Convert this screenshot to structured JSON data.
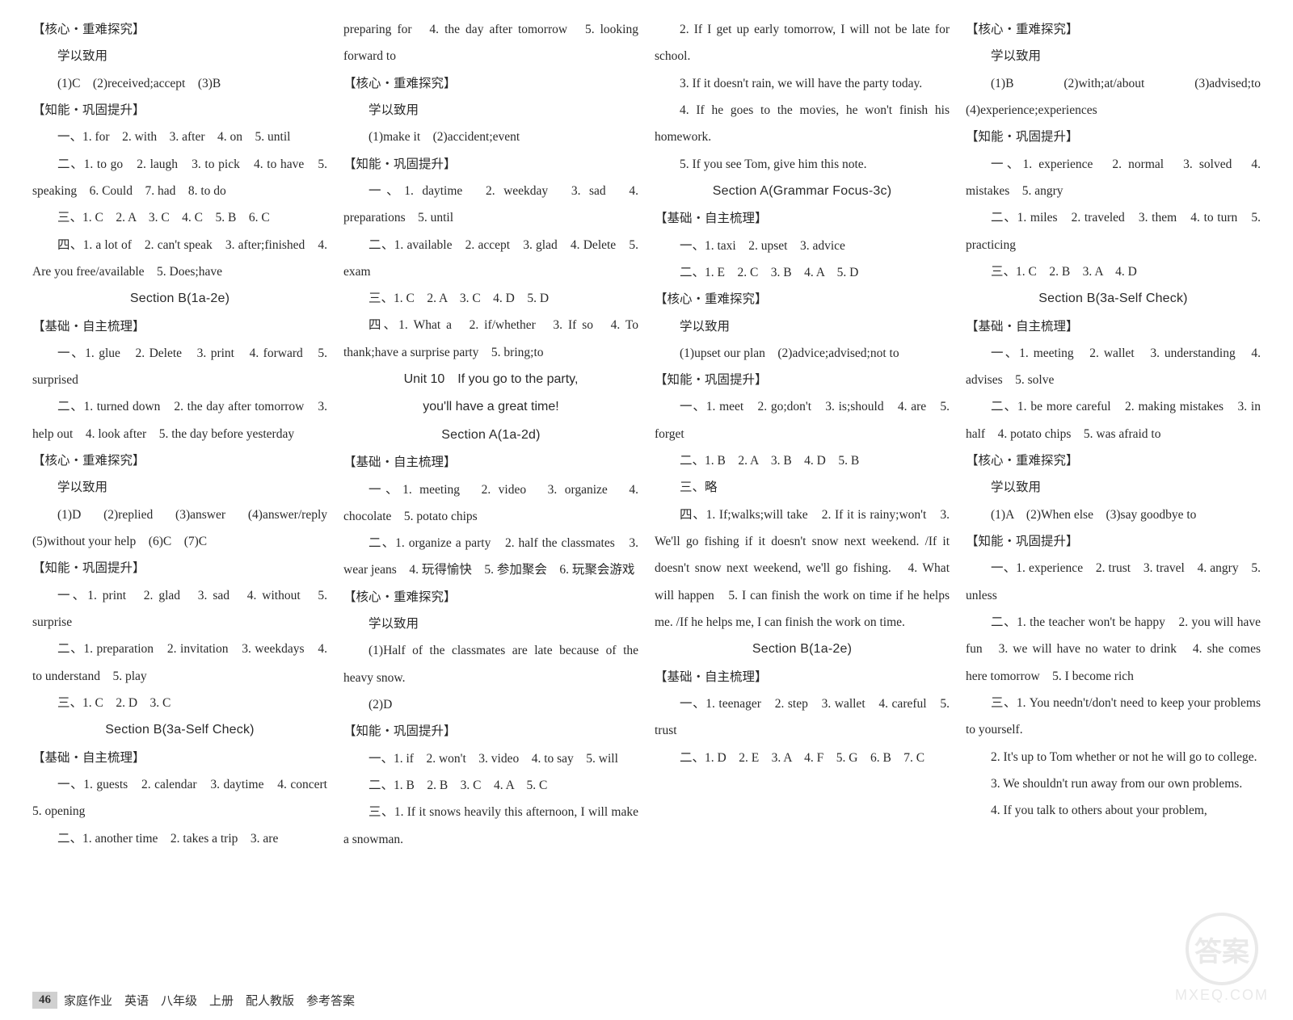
{
  "col1": {
    "l1": "【核心・重难探究】",
    "l2": "学以致用",
    "l3": "(1)C　(2)received;accept　(3)B",
    "l4": "【知能・巩固提升】",
    "l5": "一、1. for　2. with　3. after　4. on　5. until",
    "l6": "二、1. to go　2. laugh　3. to pick　4. to have　5. speaking　6. Could　7. had　8. to do",
    "l7": "三、1. C　2. A　3. C　4. C　5. B　6. C",
    "l8": "四、1. a lot of　2. can't speak　3. after;finished　4. Are you free/available　5. Does;have",
    "sec1": "Section B(1a-2e)",
    "l9": "【基础・自主梳理】",
    "l10": "一、1. glue　2. Delete　3. print　4. forward　5. surprised",
    "l11": "二、1. turned down　2. the day after tomorrow　3. help out　4. look after　5. the day before yesterday",
    "l12": "【核心・重难探究】",
    "l13": "学以致用",
    "l14": "(1)D　(2)replied　(3)answer　(4)answer/reply　(5)without your help　(6)C　(7)C",
    "l15": "【知能・巩固提升】",
    "l16": "一、1. print　2. glad　3. sad　4. without　5. surprise",
    "l17": "二、1. preparation　2. invitation　3. weekdays　4. to understand　5. play",
    "l18": "三、1. C　2. D　3. C",
    "sec2": "Section B(3a-Self Check)",
    "l19": "【基础・自主梳理】",
    "l20": "一、1. guests　2. calendar　3. daytime　4. concert　5. opening",
    "l21": "二、1. another time　2. takes a trip　3. are"
  },
  "col2": {
    "l1": "preparing for　4. the day after tomorrow　5. looking forward to",
    "l2": "【核心・重难探究】",
    "l3": "学以致用",
    "l4": "(1)make it　(2)accident;event",
    "l5": "【知能・巩固提升】",
    "l6": "一、1. daytime　2. weekday　3. sad　4. preparations　5. until",
    "l7": "二、1. available　2. accept　3. glad　4. Delete　5. exam",
    "l8": "三、1. C　2. A　3. C　4. D　5. D",
    "l9": "四、1. What a　2. if/whether　3. If so　4. To thank;have a surprise party　5. bring;to",
    "unit": "Unit 10　If you go to the party,",
    "unit2": "you'll have a great time!",
    "sec1": "Section A(1a-2d)",
    "l10": "【基础・自主梳理】",
    "l11": "一、1. meeting　2. video　3. organize　4. chocolate　5. potato chips",
    "l12": "二、1. organize a party　2. half the classmates　3. wear jeans　4. 玩得愉快　5. 参加聚会　6. 玩聚会游戏",
    "l13": "【核心・重难探究】",
    "l14": "学以致用",
    "l15": "(1)Half of the classmates are late because of the heavy snow.",
    "l16": "(2)D",
    "l17": "【知能・巩固提升】",
    "l18": "一、1. if　2. won't　3. video　4. to say　5. will",
    "l19": "二、1. B　2. B　3. C　4. A　5. C",
    "l20": "三、1. If it snows heavily this afternoon, I will make a snowman."
  },
  "col3": {
    "l1": "2. If I get up early tomorrow, I will not be late for school.",
    "l2": "3. If it doesn't rain, we will have the party today.",
    "l3": "4. If he goes to the movies, he won't finish his homework.",
    "l4": "5. If you see Tom, give him this note.",
    "sec1": "Section A(Grammar Focus-3c)",
    "l5": "【基础・自主梳理】",
    "l6": "一、1. taxi　2. upset　3. advice",
    "l7": "二、1. E　2. C　3. B　4. A　5. D",
    "l8": "【核心・重难探究】",
    "l9": "学以致用",
    "l10": "(1)upset our plan　(2)advice;advised;not to",
    "l11": "【知能・巩固提升】",
    "l12": "一、1. meet　2. go;don't　3. is;should　4. are　5. forget",
    "l13": "二、1. B　2. A　3. B　4. D　5. B",
    "l14": "三、略",
    "l15": "四、1. If;walks;will take　2. If it is rainy;won't　3. We'll go fishing if it doesn't snow next weekend. /If it doesn't snow next weekend, we'll go fishing.　4. What will happen　5. I can finish the work on time if he helps me. /If he helps me, I can finish the work on time.",
    "sec2": "Section B(1a-2e)",
    "l16": "【基础・自主梳理】",
    "l17": "一、1. teenager　2. step　3. wallet　4. careful　5. trust",
    "l18": "二、1. D　2. E　3. A　4. F　5. G　6. B　7. C"
  },
  "col4": {
    "l1": "【核心・重难探究】",
    "l2": "学以致用",
    "l3": "(1)B　(2)with;at/about　(3)advised;to　(4)experience;experiences",
    "l4": "【知能・巩固提升】",
    "l5": "一、1. experience　2. normal　3. solved　4. mistakes　5. angry",
    "l6": "二、1. miles　2. traveled　3. them　4. to turn　5. practicing",
    "l7": "三、1. C　2. B　3. A　4. D",
    "sec1": "Section B(3a-Self Check)",
    "l8": "【基础・自主梳理】",
    "l9": "一、1. meeting　2. wallet　3. understanding　4. advises　5. solve",
    "l10": "二、1. be more careful　2. making mistakes　3. in half　4. potato chips　5. was afraid to",
    "l11": "【核心・重难探究】",
    "l12": "学以致用",
    "l13": "(1)A　(2)When else　(3)say goodbye to",
    "l14": "【知能・巩固提升】",
    "l15": "一、1. experience　2. trust　3. travel　4. angry　5. unless",
    "l16": "二、1. the teacher won't be happy　2. you will have fun　3. we will have no water to drink　4. she comes here tomorrow　5. I become rich",
    "l17": "三、1. You needn't/don't need to keep your problems to yourself.",
    "l18": "2. It's up to Tom whether or not he will go to college.",
    "l19": "3. We shouldn't run away from our own problems.",
    "l20": "4. If you talk to others about your problem,"
  },
  "footer": {
    "page": "46",
    "text": "家庭作业　英语　八年级　上册　配人教版　参考答案"
  },
  "watermark": {
    "circle": "答案",
    "site": "MXEQ.COM"
  }
}
